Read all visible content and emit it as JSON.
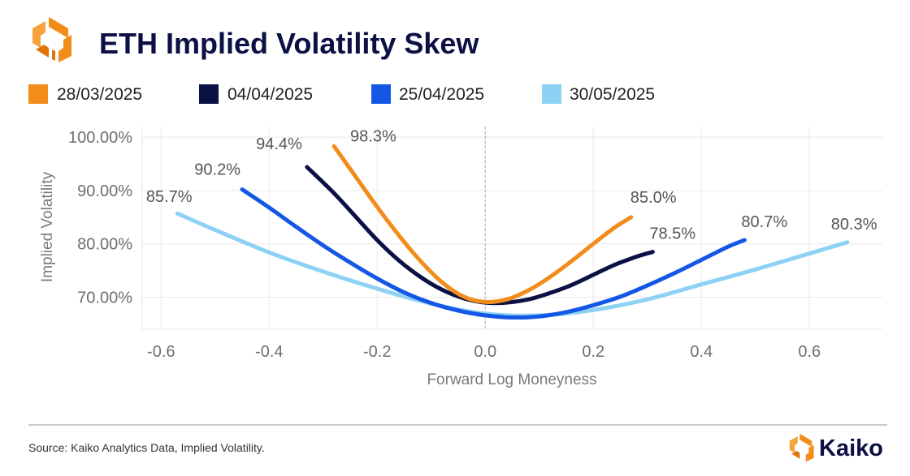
{
  "header": {
    "title": "ETH Implied Volatility Skew"
  },
  "footer": {
    "source": "Source: Kaiko Analytics Data, Implied Volatility.",
    "brand": "Kaiko"
  },
  "chart_data": {
    "type": "line",
    "title": "ETH Implied Volatility Skew",
    "xlabel": "Forward Log Moneyness",
    "ylabel": "Implied Volatility",
    "xlim": [
      -0.635,
      0.735
    ],
    "ylim": [
      64.0,
      102.0
    ],
    "x_ticks": [
      -0.6,
      -0.4,
      -0.2,
      0.0,
      0.2,
      0.4,
      0.6
    ],
    "x_tick_labels": [
      "-0.6",
      "-0.4",
      "-0.2",
      "0.0",
      "0.2",
      "0.4",
      "0.6"
    ],
    "y_ticks": [
      70,
      80,
      90,
      100
    ],
    "y_tick_labels": [
      "70.00%",
      "80.00%",
      "90.00%",
      "100.00%"
    ],
    "grid": true,
    "reference_line_x": 0.0,
    "legend_position": "top",
    "series": [
      {
        "name": "28/03/2025",
        "color": "#f28c1a",
        "x": [
          -0.28,
          -0.24,
          -0.2,
          -0.16,
          -0.12,
          -0.08,
          -0.04,
          0.0,
          0.04,
          0.08,
          0.12,
          0.16,
          0.2,
          0.24,
          0.27
        ],
        "y": [
          98.3,
          92.6,
          86.9,
          81.6,
          76.8,
          72.8,
          70.1,
          69.1,
          69.6,
          71.3,
          73.8,
          76.8,
          80.0,
          83.1,
          85.0
        ],
        "end_label": "85.0%",
        "start_label": "98.3%"
      },
      {
        "name": "04/04/2025",
        "color": "#0b1045",
        "x": [
          -0.33,
          -0.28,
          -0.24,
          -0.2,
          -0.16,
          -0.12,
          -0.08,
          -0.04,
          0.0,
          0.04,
          0.08,
          0.12,
          0.16,
          0.2,
          0.24,
          0.28,
          0.31
        ],
        "y": [
          94.4,
          89.5,
          85.1,
          80.7,
          76.9,
          73.8,
          71.4,
          69.8,
          69.0,
          69.0,
          69.6,
          70.8,
          72.3,
          74.2,
          76.1,
          77.6,
          78.5
        ],
        "end_label": "78.5%",
        "start_label": "94.4%"
      },
      {
        "name": "25/04/2025",
        "color": "#1456e6",
        "x": [
          -0.45,
          -0.4,
          -0.35,
          -0.3,
          -0.25,
          -0.2,
          -0.15,
          -0.1,
          -0.05,
          0.0,
          0.05,
          0.1,
          0.15,
          0.2,
          0.25,
          0.3,
          0.35,
          0.4,
          0.45,
          0.48
        ],
        "y": [
          90.2,
          86.8,
          83.2,
          79.7,
          76.5,
          73.5,
          70.9,
          68.9,
          67.5,
          66.6,
          66.2,
          66.4,
          67.2,
          68.5,
          70.1,
          72.2,
          74.5,
          77.0,
          79.5,
          80.7
        ],
        "end_label": "80.7%",
        "start_label": "90.2%"
      },
      {
        "name": "30/05/2025",
        "color": "#8dd1f5",
        "x": [
          -0.57,
          -0.5,
          -0.4,
          -0.3,
          -0.2,
          -0.1,
          0.0,
          0.1,
          0.2,
          0.3,
          0.4,
          0.5,
          0.6,
          0.67
        ],
        "y": [
          85.7,
          82.6,
          78.4,
          74.8,
          71.6,
          68.8,
          66.9,
          66.6,
          67.6,
          69.6,
          72.4,
          75.2,
          78.2,
          80.3
        ],
        "end_label": "80.3%",
        "start_label": "85.7%"
      }
    ]
  }
}
